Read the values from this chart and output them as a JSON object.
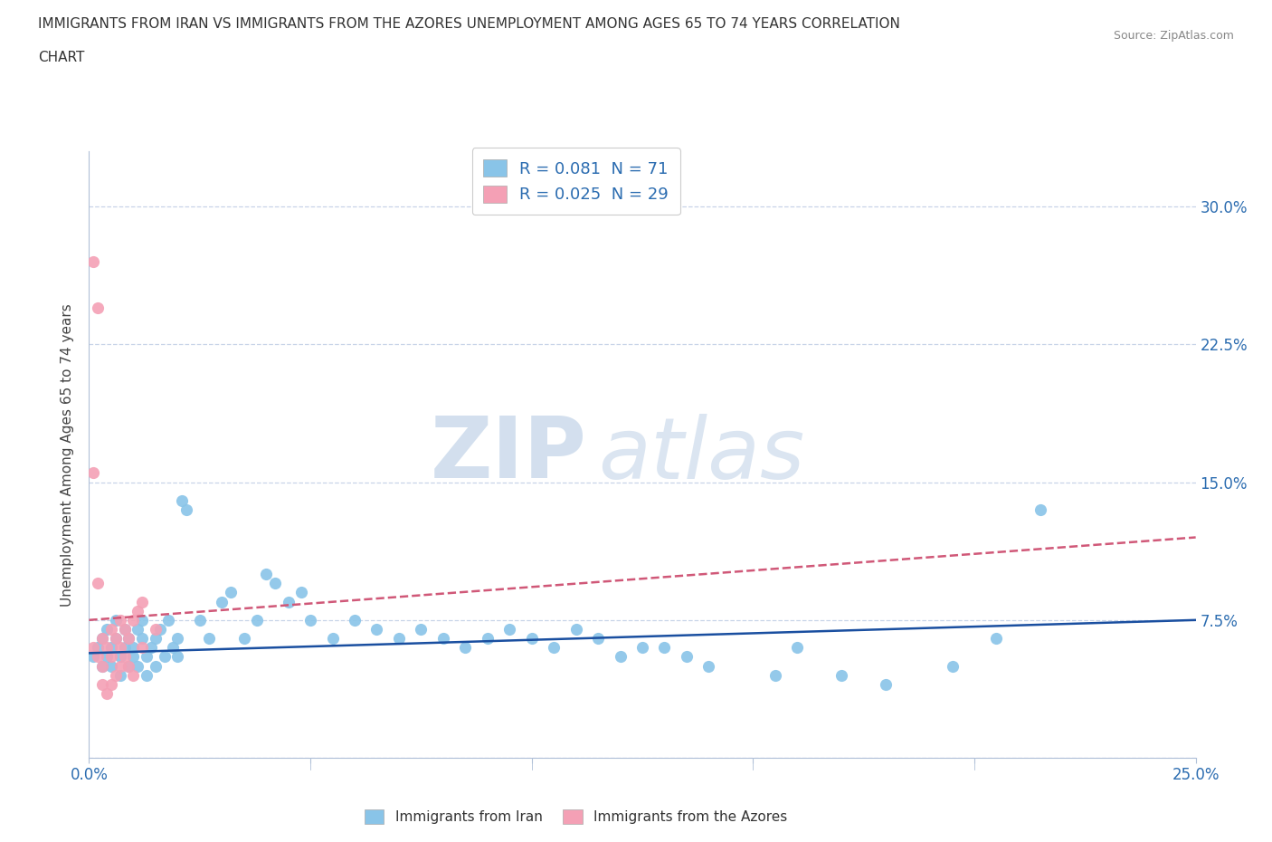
{
  "title_line1": "IMMIGRANTS FROM IRAN VS IMMIGRANTS FROM THE AZORES UNEMPLOYMENT AMONG AGES 65 TO 74 YEARS CORRELATION",
  "title_line2": "CHART",
  "source": "Source: ZipAtlas.com",
  "ylabel": "Unemployment Among Ages 65 to 74 years",
  "xlim": [
    0.0,
    0.25
  ],
  "ylim": [
    0.0,
    0.33
  ],
  "yticks": [
    0.0,
    0.075,
    0.15,
    0.225,
    0.3
  ],
  "ytick_labels_right": [
    "",
    "7.5%",
    "15.0%",
    "22.5%",
    "30.0%"
  ],
  "xtick_positions": [
    0.0,
    0.05,
    0.1,
    0.15,
    0.2,
    0.25
  ],
  "xtick_label_left": "0.0%",
  "xtick_label_right": "25.0%",
  "iran_color": "#89c4e8",
  "azores_color": "#f4a0b5",
  "iran_scatter": [
    [
      0.001,
      0.055
    ],
    [
      0.002,
      0.06
    ],
    [
      0.003,
      0.065
    ],
    [
      0.003,
      0.05
    ],
    [
      0.004,
      0.07
    ],
    [
      0.004,
      0.055
    ],
    [
      0.005,
      0.06
    ],
    [
      0.005,
      0.05
    ],
    [
      0.006,
      0.065
    ],
    [
      0.006,
      0.075
    ],
    [
      0.007,
      0.055
    ],
    [
      0.007,
      0.045
    ],
    [
      0.008,
      0.06
    ],
    [
      0.008,
      0.07
    ],
    [
      0.009,
      0.05
    ],
    [
      0.009,
      0.065
    ],
    [
      0.01,
      0.06
    ],
    [
      0.01,
      0.055
    ],
    [
      0.011,
      0.07
    ],
    [
      0.011,
      0.05
    ],
    [
      0.012,
      0.065
    ],
    [
      0.012,
      0.075
    ],
    [
      0.013,
      0.055
    ],
    [
      0.013,
      0.045
    ],
    [
      0.014,
      0.06
    ],
    [
      0.015,
      0.065
    ],
    [
      0.015,
      0.05
    ],
    [
      0.016,
      0.07
    ],
    [
      0.017,
      0.055
    ],
    [
      0.018,
      0.075
    ],
    [
      0.019,
      0.06
    ],
    [
      0.02,
      0.065
    ],
    [
      0.02,
      0.055
    ],
    [
      0.021,
      0.14
    ],
    [
      0.022,
      0.135
    ],
    [
      0.025,
      0.075
    ],
    [
      0.027,
      0.065
    ],
    [
      0.03,
      0.085
    ],
    [
      0.032,
      0.09
    ],
    [
      0.035,
      0.065
    ],
    [
      0.038,
      0.075
    ],
    [
      0.04,
      0.1
    ],
    [
      0.042,
      0.095
    ],
    [
      0.045,
      0.085
    ],
    [
      0.048,
      0.09
    ],
    [
      0.05,
      0.075
    ],
    [
      0.055,
      0.065
    ],
    [
      0.06,
      0.075
    ],
    [
      0.065,
      0.07
    ],
    [
      0.07,
      0.065
    ],
    [
      0.075,
      0.07
    ],
    [
      0.08,
      0.065
    ],
    [
      0.085,
      0.06
    ],
    [
      0.09,
      0.065
    ],
    [
      0.095,
      0.07
    ],
    [
      0.1,
      0.065
    ],
    [
      0.105,
      0.06
    ],
    [
      0.11,
      0.07
    ],
    [
      0.115,
      0.065
    ],
    [
      0.12,
      0.055
    ],
    [
      0.125,
      0.06
    ],
    [
      0.13,
      0.06
    ],
    [
      0.135,
      0.055
    ],
    [
      0.14,
      0.05
    ],
    [
      0.155,
      0.045
    ],
    [
      0.16,
      0.06
    ],
    [
      0.17,
      0.045
    ],
    [
      0.18,
      0.04
    ],
    [
      0.195,
      0.05
    ],
    [
      0.205,
      0.065
    ],
    [
      0.215,
      0.135
    ]
  ],
  "azores_scatter": [
    [
      0.001,
      0.06
    ],
    [
      0.002,
      0.055
    ],
    [
      0.003,
      0.065
    ],
    [
      0.003,
      0.05
    ],
    [
      0.004,
      0.06
    ],
    [
      0.005,
      0.055
    ],
    [
      0.005,
      0.07
    ],
    [
      0.006,
      0.065
    ],
    [
      0.007,
      0.06
    ],
    [
      0.007,
      0.075
    ],
    [
      0.008,
      0.07
    ],
    [
      0.009,
      0.065
    ],
    [
      0.01,
      0.075
    ],
    [
      0.011,
      0.08
    ],
    [
      0.012,
      0.085
    ],
    [
      0.001,
      0.155
    ],
    [
      0.002,
      0.095
    ],
    [
      0.001,
      0.27
    ],
    [
      0.002,
      0.245
    ],
    [
      0.003,
      0.04
    ],
    [
      0.004,
      0.035
    ],
    [
      0.005,
      0.04
    ],
    [
      0.006,
      0.045
    ],
    [
      0.007,
      0.05
    ],
    [
      0.008,
      0.055
    ],
    [
      0.009,
      0.05
    ],
    [
      0.01,
      0.045
    ],
    [
      0.012,
      0.06
    ],
    [
      0.015,
      0.07
    ]
  ],
  "iran_R": "0.081",
  "iran_N": "71",
  "azores_R": "0.025",
  "azores_N": "29",
  "legend_iran_label": "Immigrants from Iran",
  "legend_azores_label": "Immigrants from the Azores",
  "watermark_zip": "ZIP",
  "watermark_atlas": "atlas",
  "trendline_iran_color": "#1a4fa0",
  "trendline_azores_color": "#d05878",
  "grid_color": "#c8d4e8",
  "tick_color": "#2b6cb0",
  "background_color": "#ffffff",
  "spine_color": "#b0c0d8"
}
